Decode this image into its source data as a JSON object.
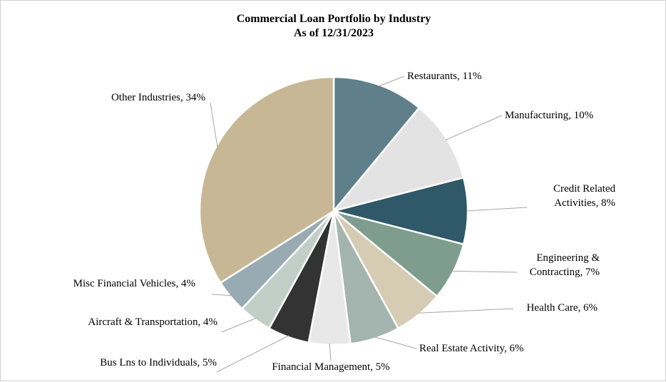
{
  "chart_data": {
    "type": "pie",
    "title": "Commercial Loan Portfolio by Industry",
    "subtitle": "As of 12/31/2023",
    "start_angle_deg": 0,
    "direction": "clockwise",
    "slices": [
      {
        "name": "Restaurants",
        "value": 11,
        "label": "Restaurants, 11%",
        "color": "#5f7f8a"
      },
      {
        "name": "Manufacturing",
        "value": 10,
        "label": "Manufacturing, 10%",
        "color": "#e3e3e3"
      },
      {
        "name": "Credit Related Activities",
        "value": 8,
        "label": [
          "Credit Related",
          "Activities, 8%"
        ],
        "color": "#2f5868"
      },
      {
        "name": "Engineering & Contracting",
        "value": 7,
        "label": [
          "Engineering &",
          "Contracting, 7%"
        ],
        "color": "#7e9d8f"
      },
      {
        "name": "Health Care",
        "value": 6,
        "label": "Health Care, 6%",
        "color": "#d6cbb3"
      },
      {
        "name": "Real Estate Activity",
        "value": 6,
        "label": "Real Estate Activity, 6%",
        "color": "#a3b5ae"
      },
      {
        "name": "Financial Management",
        "value": 5,
        "label": "Financial Management, 5%",
        "color": "#e8e8e8"
      },
      {
        "name": "Bus Lns to Individuals",
        "value": 5,
        "label": "Bus Lns to Individuals, 5%",
        "color": "#333333"
      },
      {
        "name": "Aircraft & Transportation",
        "value": 4,
        "label": "Aircraft & Transportation, 4%",
        "color": "#c2cfc8"
      },
      {
        "name": "Misc Financial Vehicles",
        "value": 4,
        "label": "Misc Financial Vehicles, 4%",
        "color": "#98aab2"
      },
      {
        "name": "Other Industries",
        "value": 34,
        "label": "Other Industries, 34%",
        "color": "#c7b794"
      }
    ]
  }
}
